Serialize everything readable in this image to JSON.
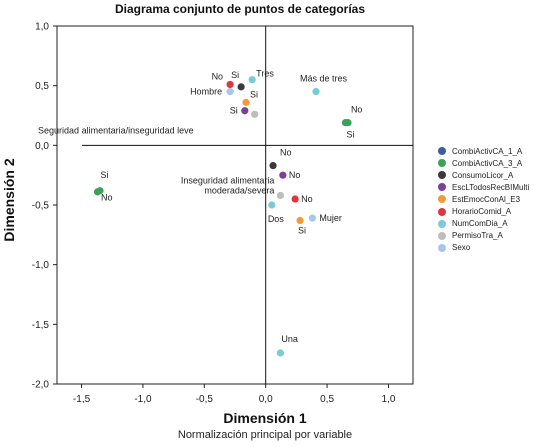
{
  "chart_data": {
    "type": "scatter",
    "title": "Diagrama conjunto de puntos de categorías",
    "subtitle": "Normalización principal por variable",
    "xlabel": "Dimensión 1",
    "ylabel": "Dimensión 2",
    "xlim": [
      -1.7,
      1.2
    ],
    "ylim": [
      -2.0,
      1.0
    ],
    "x_ticks": [
      "-1,5",
      "-1,0",
      "-0,5",
      "0,0",
      "0,5",
      "1,0"
    ],
    "x_tick_values": [
      -1.5,
      -1.0,
      -0.5,
      0.0,
      0.5,
      1.0
    ],
    "y_ticks": [
      "1,0",
      "0,5",
      "0,0",
      "-0,5",
      "-1,0",
      "-1,5",
      "-2,0"
    ],
    "y_tick_values": [
      1.0,
      0.5,
      0.0,
      -0.5,
      -1.0,
      -1.5,
      -2.0
    ],
    "grid": false,
    "reference_lines": {
      "x": 0,
      "y": 0
    },
    "legend_position": "right",
    "series": [
      {
        "name": "CombiActivCA_1_A",
        "color": "#3d5ba9",
        "points": []
      },
      {
        "name": "CombiActivCA_3_A",
        "color": "#3aa05a",
        "points": [
          {
            "x": 0.67,
            "y": 0.19,
            "label": "No"
          },
          {
            "x": 0.65,
            "y": 0.19,
            "label": "Si"
          },
          {
            "x": -1.37,
            "y": -0.39,
            "label": "Si"
          },
          {
            "x": -1.35,
            "y": -0.38,
            "label": "No"
          }
        ]
      },
      {
        "name": "ConsumoLicor_A",
        "color": "#3a3a3a",
        "points": [
          {
            "x": -0.2,
            "y": 0.49,
            "label": "Si"
          },
          {
            "x": 0.06,
            "y": -0.17,
            "label": "No"
          }
        ]
      },
      {
        "name": "EscLTodosRecBIMulti",
        "color": "#7e3f98",
        "points": [
          {
            "x": -0.17,
            "y": 0.29,
            "label": "Si"
          },
          {
            "x": 0.14,
            "y": -0.25,
            "label": "No"
          }
        ]
      },
      {
        "name": "EstEmocConAl_E3",
        "color": "#f29a38",
        "points": [
          {
            "x": -0.16,
            "y": 0.36,
            "label": "Si"
          },
          {
            "x": 0.28,
            "y": -0.63,
            "label": "Si"
          }
        ]
      },
      {
        "name": "HorarioComid_A",
        "color": "#e0353b",
        "points": [
          {
            "x": -0.29,
            "y": 0.51,
            "label": "No"
          },
          {
            "x": 0.24,
            "y": -0.45,
            "label": "No"
          }
        ]
      },
      {
        "name": "NumComDia_A",
        "color": "#78ccd8",
        "points": [
          {
            "x": -0.11,
            "y": 0.55,
            "label": "Tres"
          },
          {
            "x": 0.41,
            "y": 0.45,
            "label": "Más de tres"
          },
          {
            "x": 0.05,
            "y": -0.5,
            "label": "Dos"
          },
          {
            "x": 0.12,
            "y": -1.74,
            "label": "Una"
          }
        ]
      },
      {
        "name": "PermisoTra_A",
        "color": "#bdbdbd",
        "points": [
          {
            "x": -0.09,
            "y": 0.26,
            "label": "Seguridad alimentaria/inseguridad leve"
          },
          {
            "x": 0.12,
            "y": -0.42,
            "label": "Inseguridad alimentaria moderada/severa"
          }
        ]
      },
      {
        "name": "Sexo",
        "color": "#a8c7e8",
        "points": [
          {
            "x": -0.29,
            "y": 0.45,
            "label": "Hombre"
          },
          {
            "x": 0.38,
            "y": -0.61,
            "label": "Mujer"
          }
        ]
      }
    ]
  }
}
